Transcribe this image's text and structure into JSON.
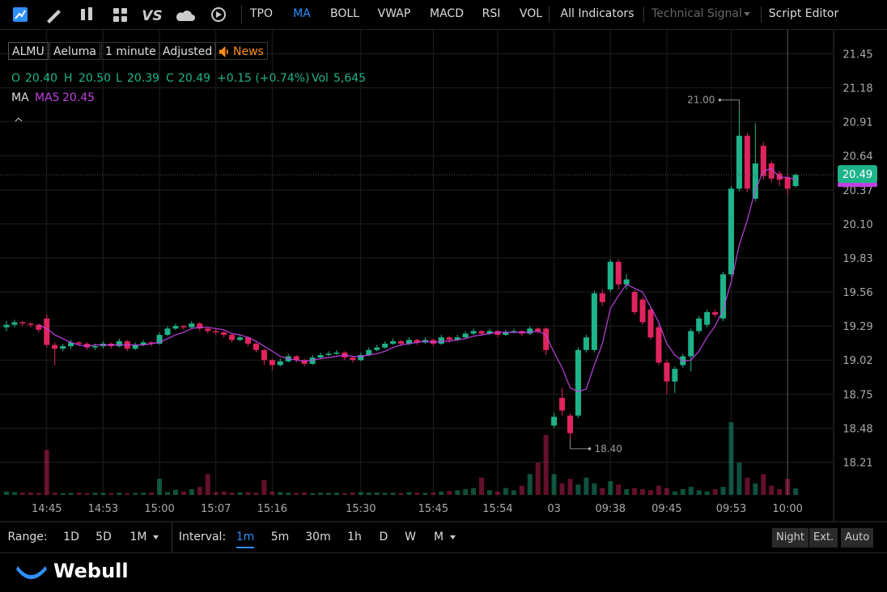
{
  "toolbar": {
    "items": [
      "TPO",
      "MA",
      "BOLL",
      "VWAP",
      "MACD",
      "RSI",
      "VOL"
    ],
    "all_indicators": "All Indicators",
    "technical_signal": "Technical Signal",
    "script_editor": "Script Editor"
  },
  "legend": {
    "symbol": "ALMU",
    "name": "Aeluma",
    "interval": "1 minute",
    "adjust": "Adjusted",
    "news": "News"
  },
  "quote": [
    {
      "key": "O",
      "value": "20.40"
    },
    {
      "key": "H",
      "value": "20.50"
    },
    {
      "key": "L",
      "value": "20.39"
    },
    {
      "key": "C",
      "value": "20.49"
    },
    {
      "key": "change",
      "value": "+0.15 (+0.74%)"
    },
    {
      "key": "Vol",
      "value": "5,645"
    }
  ],
  "indicator": {
    "label": "MA",
    "name": "MA5"
  },
  "range": {
    "label": "Range:",
    "options": [
      "1D",
      "5D",
      "1M"
    ]
  },
  "interval": {
    "label": "Interval:",
    "options": [
      "1m",
      "5m",
      "30m",
      "1h",
      "D",
      "W",
      "M"
    ]
  },
  "session": [
    "Night",
    "Ext.",
    "Auto"
  ],
  "brand": "Webull",
  "chart_data": {
    "type": "candlestick",
    "up_color": "#1fb38a",
    "down_color": "#e0245e",
    "ma_color": "#c040e0",
    "grid": true,
    "categories": [
      null,
      null,
      null,
      null,
      null,
      "14:45",
      null,
      null,
      null,
      null,
      null,
      null,
      "14:53",
      null,
      null,
      null,
      null,
      null,
      null,
      "15:00",
      null,
      null,
      null,
      null,
      null,
      null,
      "15:07",
      null,
      null,
      null,
      null,
      null,
      null,
      "15:16",
      null,
      null,
      null,
      null,
      null,
      null,
      null,
      null,
      null,
      null,
      "15:30",
      null,
      null,
      null,
      null,
      null,
      null,
      null,
      null,
      "15:45",
      null,
      null,
      null,
      null,
      null,
      null,
      null,
      "15:54",
      null,
      null,
      null,
      null,
      null,
      null,
      "03",
      null,
      null,
      null,
      null,
      null,
      null,
      "09:38",
      null,
      null,
      null,
      null,
      null,
      null,
      "09:45",
      null,
      null,
      null,
      null,
      null,
      null,
      null,
      "09:53",
      null,
      null,
      null,
      null,
      null,
      null,
      "10:00",
      null
    ],
    "open": [
      19.28,
      19.3,
      19.32,
      19.31,
      19.3,
      19.35,
      19.14,
      19.11,
      19.13,
      19.16,
      19.15,
      19.12,
      19.13,
      19.15,
      19.13,
      19.17,
      19.11,
      19.14,
      19.16,
      19.15,
      19.22,
      19.27,
      19.29,
      19.28,
      19.31,
      19.27,
      19.25,
      19.24,
      19.22,
      19.18,
      19.2,
      19.15,
      19.1,
      19.02,
      18.98,
      19.01,
      19.05,
      19.02,
      18.99,
      19.04,
      19.06,
      19.07,
      19.08,
      19.04,
      19.02,
      19.06,
      19.1,
      19.12,
      19.15,
      19.17,
      19.15,
      19.18,
      19.16,
      19.18,
      19.15,
      19.2,
      19.18,
      19.2,
      19.23,
      19.25,
      19.23,
      19.25,
      19.22,
      19.24,
      19.25,
      19.23,
      19.27,
      19.27,
      18.5,
      18.72,
      18.58,
      18.58,
      19.1,
      19.1,
      19.55,
      19.58,
      19.8,
      19.62,
      19.56,
      19.5,
      19.42,
      19.28,
      19.0,
      18.85,
      18.98,
      19.05,
      19.25,
      19.3,
      19.4,
      19.35,
      19.7,
      20.38,
      20.8,
      20.3,
      20.72,
      20.58,
      20.5,
      20.47,
      20.4
    ],
    "high": [
      19.33,
      19.34,
      19.33,
      19.32,
      19.31,
      19.38,
      19.16,
      19.15,
      19.18,
      19.17,
      19.16,
      19.15,
      19.17,
      19.16,
      19.19,
      19.18,
      19.16,
      19.18,
      19.17,
      19.24,
      19.29,
      19.31,
      19.3,
      19.33,
      19.32,
      19.28,
      19.27,
      19.25,
      19.23,
      19.22,
      19.21,
      19.16,
      19.11,
      19.03,
      19.03,
      19.07,
      19.06,
      19.03,
      19.06,
      19.08,
      19.09,
      19.1,
      19.09,
      19.05,
      19.08,
      19.12,
      19.14,
      19.17,
      19.19,
      19.18,
      19.2,
      19.19,
      19.2,
      19.19,
      19.22,
      19.21,
      19.22,
      19.25,
      19.27,
      19.26,
      19.27,
      19.26,
      19.26,
      19.27,
      19.26,
      19.29,
      19.28,
      19.28,
      18.6,
      18.8,
      18.6,
      19.12,
      19.22,
      19.57,
      19.58,
      19.82,
      19.82,
      19.7,
      19.58,
      19.52,
      19.44,
      19.3,
      19.02,
      18.97,
      19.07,
      19.27,
      19.37,
      19.42,
      19.42,
      19.72,
      20.4,
      21.0,
      20.82,
      20.9,
      20.75,
      20.6,
      20.52,
      20.5,
      20.5
    ],
    "low": [
      19.25,
      19.28,
      19.29,
      19.28,
      19.24,
      19.12,
      18.98,
      19.09,
      19.11,
      19.13,
      19.1,
      19.1,
      19.11,
      19.11,
      19.12,
      19.09,
      19.1,
      19.13,
      19.13,
      19.14,
      19.21,
      19.26,
      19.26,
      19.27,
      19.25,
      19.23,
      19.22,
      19.2,
      19.16,
      19.17,
      19.13,
      19.08,
      18.98,
      18.94,
      18.97,
      19.0,
      19.0,
      18.97,
      18.98,
      19.03,
      19.05,
      19.06,
      19.02,
      19.0,
      19.01,
      19.05,
      19.09,
      19.11,
      19.14,
      19.13,
      19.14,
      19.14,
      19.15,
      19.13,
      19.14,
      19.16,
      19.17,
      19.19,
      19.22,
      19.21,
      19.22,
      19.2,
      19.21,
      19.23,
      19.21,
      19.22,
      19.23,
      19.06,
      18.48,
      18.58,
      18.4,
      18.56,
      19.08,
      19.08,
      19.45,
      19.56,
      19.58,
      19.58,
      19.38,
      19.3,
      19.18,
      18.98,
      18.75,
      18.76,
      18.96,
      18.93,
      19.23,
      19.28,
      19.36,
      19.33,
      19.68,
      20.36,
      20.35,
      20.28,
      20.45,
      20.43,
      20.4,
      20.33,
      20.39
    ],
    "close": [
      19.3,
      19.32,
      19.31,
      19.3,
      19.26,
      19.14,
      19.11,
      19.13,
      19.16,
      19.15,
      19.12,
      19.13,
      19.15,
      19.13,
      19.17,
      19.11,
      19.14,
      19.16,
      19.15,
      19.22,
      19.27,
      19.29,
      19.28,
      19.31,
      19.27,
      19.25,
      19.24,
      19.22,
      19.18,
      19.2,
      19.15,
      19.1,
      19.02,
      18.98,
      19.01,
      19.05,
      19.02,
      18.99,
      19.04,
      19.06,
      19.07,
      19.08,
      19.04,
      19.02,
      19.06,
      19.1,
      19.12,
      19.15,
      19.17,
      19.15,
      19.18,
      19.16,
      19.18,
      19.15,
      19.2,
      19.18,
      19.2,
      19.23,
      19.25,
      19.23,
      19.25,
      19.22,
      19.24,
      19.25,
      19.23,
      19.27,
      19.25,
      19.1,
      18.57,
      18.62,
      18.44,
      19.1,
      19.2,
      19.55,
      19.48,
      19.8,
      19.62,
      19.66,
      19.4,
      19.32,
      19.2,
      19.0,
      18.85,
      18.95,
      19.05,
      19.25,
      19.35,
      19.4,
      19.38,
      19.7,
      20.38,
      20.8,
      20.38,
      20.58,
      20.48,
      20.46,
      20.45,
      20.38,
      20.49
    ],
    "volume": [
      3000,
      2500,
      2000,
      2200,
      1800,
      39000,
      2000,
      1500,
      1800,
      2000,
      1500,
      2000,
      1800,
      1600,
      2000,
      1500,
      1800,
      2000,
      2200,
      14000,
      2500,
      4500,
      3000,
      5000,
      7000,
      18000,
      2500,
      3000,
      2000,
      2200,
      2500,
      2000,
      13000,
      3000,
      2500,
      2000,
      1800,
      2200,
      1500,
      2000,
      1800,
      2000,
      1500,
      2200,
      2500,
      2000,
      2200,
      1800,
      2000,
      1500,
      2500,
      2000,
      1800,
      2200,
      3000,
      3500,
      4000,
      5000,
      6000,
      15000,
      4000,
      3000,
      6000,
      4000,
      8000,
      18000,
      28000,
      52000,
      18000,
      10000,
      14000,
      9000,
      15000,
      10000,
      6000,
      12000,
      9000,
      5000,
      6000,
      5000,
      4000,
      8000,
      6000,
      3000,
      5000,
      7000,
      4000,
      3000,
      5000,
      7000,
      63000,
      28000,
      15000,
      10000,
      18000,
      8000,
      5000,
      14000,
      5645
    ],
    "ma": [
      null,
      null,
      null,
      null,
      19.3,
      19.27,
      19.22,
      19.19,
      19.16,
      19.14,
      19.13,
      19.14,
      19.14,
      19.14,
      19.14,
      19.14,
      19.14,
      19.14,
      19.15,
      19.16,
      19.19,
      19.22,
      19.24,
      19.27,
      19.28,
      19.28,
      19.27,
      19.26,
      19.23,
      19.22,
      19.2,
      19.17,
      19.13,
      19.09,
      19.05,
      19.03,
      19.02,
      19.01,
      19.02,
      19.03,
      19.04,
      19.05,
      19.06,
      19.05,
      19.05,
      19.06,
      19.07,
      19.09,
      19.12,
      19.14,
      19.15,
      19.16,
      19.17,
      19.16,
      19.17,
      19.17,
      19.18,
      19.19,
      19.21,
      19.22,
      19.23,
      19.24,
      19.24,
      19.24,
      19.24,
      19.24,
      19.25,
      19.22,
      19.08,
      18.96,
      18.8,
      18.77,
      18.79,
      18.98,
      19.15,
      19.43,
      19.53,
      19.62,
      19.59,
      19.56,
      19.44,
      19.32,
      19.15,
      19.06,
      19.01,
      19.02,
      19.09,
      19.2,
      19.29,
      19.42,
      19.64,
      19.93,
      20.13,
      20.37,
      20.52,
      20.54,
      20.47,
      20.47,
      20.45
    ],
    "annotations": [
      {
        "index": 91,
        "value": 21.0,
        "label": "21.00"
      },
      {
        "index": 70,
        "value": 18.4,
        "label": "18.40"
      }
    ],
    "ylim": [
      17.95,
      21.62
    ],
    "yticks": [
      21.45,
      21.18,
      20.91,
      20.64,
      20.37,
      {
        "value": 20.1,
        "label": "20.10"
      },
      19.83,
      19.56,
      19.29,
      19.02,
      18.75,
      18.48,
      18.21
    ]
  }
}
